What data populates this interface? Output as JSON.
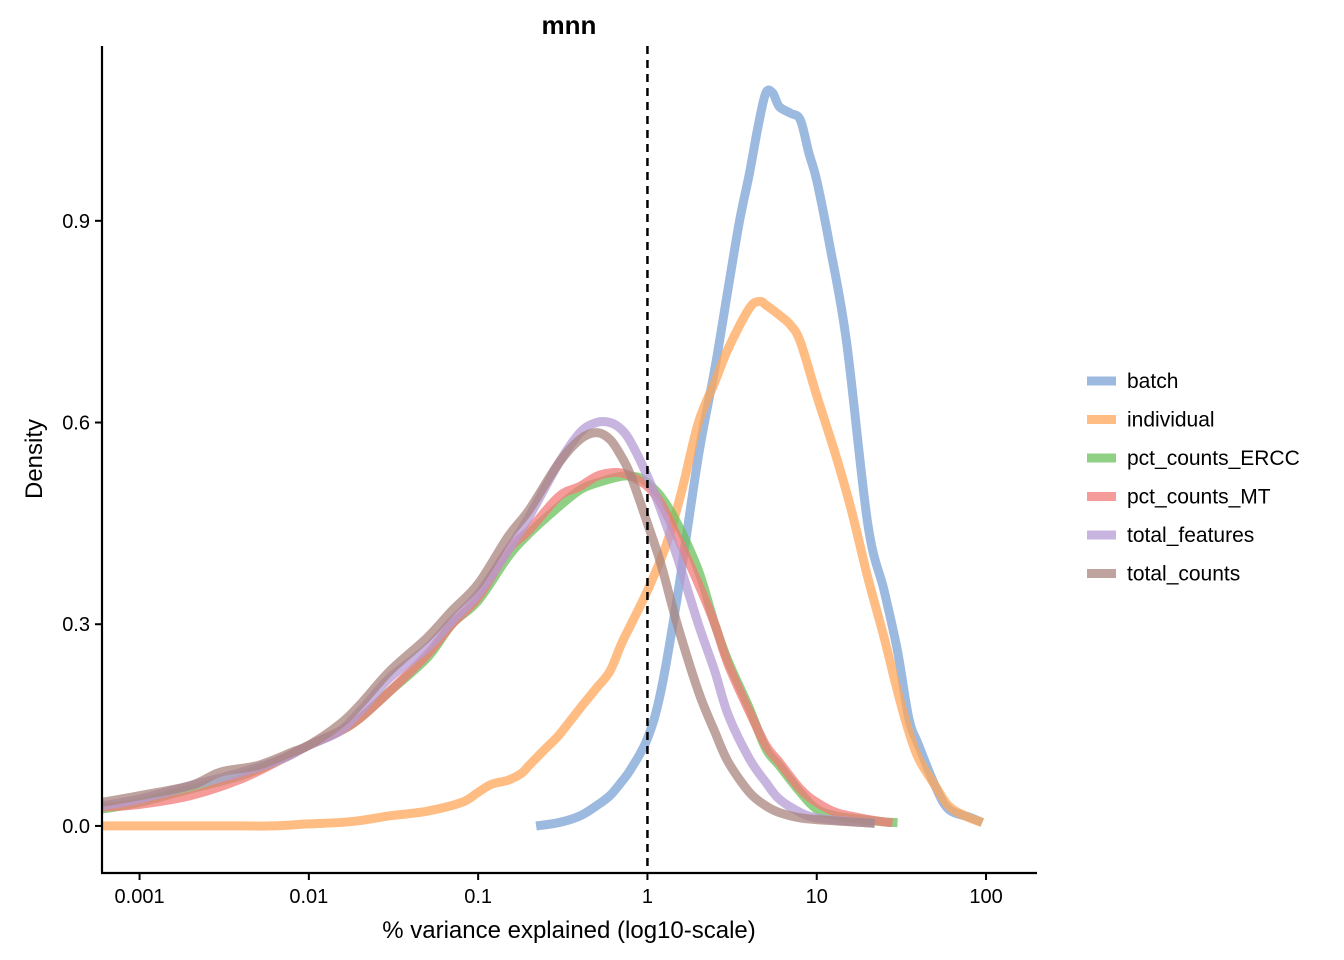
{
  "chart_data": {
    "type": "line",
    "title": "mnn",
    "xlabel": "% variance explained (log10-scale)",
    "ylabel": "Density",
    "x_scale": "log10",
    "xlim": [
      0.0006,
      200
    ],
    "ylim": [
      -0.07,
      1.16
    ],
    "x_ticks": [
      {
        "value": 0.001,
        "label": "0.001"
      },
      {
        "value": 0.01,
        "label": "0.01"
      },
      {
        "value": 0.1,
        "label": "0.1"
      },
      {
        "value": 1,
        "label": "1"
      },
      {
        "value": 10,
        "label": "10"
      },
      {
        "value": 100,
        "label": "100"
      }
    ],
    "y_ticks": [
      {
        "value": 0.0,
        "label": "0.0"
      },
      {
        "value": 0.3,
        "label": "0.3"
      },
      {
        "value": 0.6,
        "label": "0.6"
      },
      {
        "value": 0.9,
        "label": "0.9"
      }
    ],
    "vline": {
      "x": 1,
      "style": "dashed"
    },
    "grid": false,
    "legend_position": "right",
    "series": [
      {
        "name": "batch",
        "color": "#7ba3d4",
        "points": [
          [
            0.22,
            0.0
          ],
          [
            0.3,
            0.005
          ],
          [
            0.4,
            0.015
          ],
          [
            0.5,
            0.03
          ],
          [
            0.6,
            0.045
          ],
          [
            0.7,
            0.065
          ],
          [
            0.8,
            0.085
          ],
          [
            1.0,
            0.13
          ],
          [
            1.2,
            0.2
          ],
          [
            1.5,
            0.34
          ],
          [
            2.0,
            0.55
          ],
          [
            2.5,
            0.68
          ],
          [
            3.0,
            0.8
          ],
          [
            3.5,
            0.9
          ],
          [
            4.0,
            0.97
          ],
          [
            4.5,
            1.04
          ],
          [
            5.0,
            1.09
          ],
          [
            5.5,
            1.09
          ],
          [
            6.0,
            1.07
          ],
          [
            7.0,
            1.06
          ],
          [
            8.0,
            1.05
          ],
          [
            9.0,
            1.0
          ],
          [
            10.0,
            0.96
          ],
          [
            12.0,
            0.86
          ],
          [
            15.0,
            0.72
          ],
          [
            20.0,
            0.45
          ],
          [
            25.0,
            0.35
          ],
          [
            30.0,
            0.26
          ],
          [
            35.0,
            0.16
          ],
          [
            40.0,
            0.12
          ],
          [
            50.0,
            0.06
          ],
          [
            60.0,
            0.025
          ],
          [
            80.0,
            0.013
          ],
          [
            95.0,
            0.005
          ]
        ]
      },
      {
        "name": "individual",
        "color": "#ffa65a",
        "points": [
          [
            0.0006,
            0.0
          ],
          [
            0.001,
            0.0
          ],
          [
            0.002,
            0.0
          ],
          [
            0.004,
            0.0
          ],
          [
            0.006,
            0.0
          ],
          [
            0.01,
            0.003
          ],
          [
            0.015,
            0.005
          ],
          [
            0.02,
            0.008
          ],
          [
            0.03,
            0.015
          ],
          [
            0.05,
            0.022
          ],
          [
            0.08,
            0.035
          ],
          [
            0.1,
            0.05
          ],
          [
            0.12,
            0.062
          ],
          [
            0.15,
            0.068
          ],
          [
            0.18,
            0.078
          ],
          [
            0.2,
            0.09
          ],
          [
            0.25,
            0.115
          ],
          [
            0.3,
            0.135
          ],
          [
            0.4,
            0.175
          ],
          [
            0.5,
            0.205
          ],
          [
            0.6,
            0.23
          ],
          [
            0.7,
            0.27
          ],
          [
            0.8,
            0.3
          ],
          [
            1.0,
            0.35
          ],
          [
            1.3,
            0.42
          ],
          [
            1.6,
            0.5
          ],
          [
            2.0,
            0.6
          ],
          [
            2.5,
            0.66
          ],
          [
            3.0,
            0.71
          ],
          [
            4.0,
            0.77
          ],
          [
            4.6,
            0.78
          ],
          [
            5.0,
            0.775
          ],
          [
            6.0,
            0.76
          ],
          [
            7.0,
            0.745
          ],
          [
            8.0,
            0.72
          ],
          [
            10.0,
            0.64
          ],
          [
            13.0,
            0.55
          ],
          [
            16.0,
            0.47
          ],
          [
            20.0,
            0.37
          ],
          [
            25.0,
            0.28
          ],
          [
            30.0,
            0.2
          ],
          [
            35.0,
            0.14
          ],
          [
            40.0,
            0.1
          ],
          [
            50.0,
            0.06
          ],
          [
            60.0,
            0.03
          ],
          [
            75.0,
            0.015
          ],
          [
            95.0,
            0.005
          ]
        ]
      },
      {
        "name": "pct_counts_ERCC",
        "color": "#6bc05c",
        "points": [
          [
            0.0006,
            0.025
          ],
          [
            0.001,
            0.035
          ],
          [
            0.002,
            0.055
          ],
          [
            0.004,
            0.075
          ],
          [
            0.007,
            0.1
          ],
          [
            0.01,
            0.12
          ],
          [
            0.015,
            0.14
          ],
          [
            0.02,
            0.16
          ],
          [
            0.03,
            0.2
          ],
          [
            0.05,
            0.25
          ],
          [
            0.07,
            0.3
          ],
          [
            0.1,
            0.335
          ],
          [
            0.15,
            0.4
          ],
          [
            0.2,
            0.435
          ],
          [
            0.3,
            0.475
          ],
          [
            0.4,
            0.5
          ],
          [
            0.5,
            0.51
          ],
          [
            0.7,
            0.52
          ],
          [
            0.8,
            0.52
          ],
          [
            0.9,
            0.518
          ],
          [
            1.0,
            0.51
          ],
          [
            1.2,
            0.49
          ],
          [
            1.5,
            0.45
          ],
          [
            2.0,
            0.38
          ],
          [
            2.5,
            0.3
          ],
          [
            3.0,
            0.245
          ],
          [
            4.0,
            0.175
          ],
          [
            5.0,
            0.115
          ],
          [
            6.0,
            0.09
          ],
          [
            8.0,
            0.05
          ],
          [
            10.0,
            0.025
          ],
          [
            13.0,
            0.015
          ],
          [
            18.0,
            0.01
          ],
          [
            25.0,
            0.006
          ],
          [
            30.0,
            0.005
          ]
        ]
      },
      {
        "name": "pct_counts_MT",
        "color": "#f27a77",
        "points": [
          [
            0.0006,
            0.028
          ],
          [
            0.001,
            0.032
          ],
          [
            0.002,
            0.045
          ],
          [
            0.004,
            0.07
          ],
          [
            0.007,
            0.1
          ],
          [
            0.01,
            0.12
          ],
          [
            0.015,
            0.14
          ],
          [
            0.02,
            0.16
          ],
          [
            0.03,
            0.2
          ],
          [
            0.05,
            0.255
          ],
          [
            0.07,
            0.3
          ],
          [
            0.1,
            0.34
          ],
          [
            0.15,
            0.41
          ],
          [
            0.2,
            0.44
          ],
          [
            0.3,
            0.49
          ],
          [
            0.4,
            0.505
          ],
          [
            0.5,
            0.52
          ],
          [
            0.6,
            0.525
          ],
          [
            0.7,
            0.525
          ],
          [
            0.8,
            0.52
          ],
          [
            1.0,
            0.505
          ],
          [
            1.2,
            0.48
          ],
          [
            1.5,
            0.43
          ],
          [
            2.0,
            0.36
          ],
          [
            2.5,
            0.3
          ],
          [
            3.0,
            0.24
          ],
          [
            4.0,
            0.17
          ],
          [
            5.0,
            0.12
          ],
          [
            6.0,
            0.095
          ],
          [
            8.0,
            0.055
          ],
          [
            10.0,
            0.035
          ],
          [
            13.0,
            0.02
          ],
          [
            18.0,
            0.012
          ],
          [
            25.0,
            0.006
          ],
          [
            28.0,
            0.005
          ]
        ]
      },
      {
        "name": "total_features",
        "color": "#b49bd4",
        "points": [
          [
            0.0006,
            0.03
          ],
          [
            0.001,
            0.04
          ],
          [
            0.002,
            0.06
          ],
          [
            0.004,
            0.08
          ],
          [
            0.007,
            0.1
          ],
          [
            0.01,
            0.12
          ],
          [
            0.015,
            0.14
          ],
          [
            0.02,
            0.17
          ],
          [
            0.03,
            0.22
          ],
          [
            0.05,
            0.265
          ],
          [
            0.07,
            0.305
          ],
          [
            0.1,
            0.345
          ],
          [
            0.15,
            0.41
          ],
          [
            0.2,
            0.46
          ],
          [
            0.3,
            0.54
          ],
          [
            0.4,
            0.585
          ],
          [
            0.5,
            0.6
          ],
          [
            0.6,
            0.6
          ],
          [
            0.7,
            0.59
          ],
          [
            0.8,
            0.57
          ],
          [
            1.0,
            0.52
          ],
          [
            1.2,
            0.47
          ],
          [
            1.5,
            0.4
          ],
          [
            2.0,
            0.3
          ],
          [
            2.5,
            0.23
          ],
          [
            3.0,
            0.165
          ],
          [
            4.0,
            0.1
          ],
          [
            5.0,
            0.065
          ],
          [
            6.0,
            0.04
          ],
          [
            8.0,
            0.02
          ],
          [
            10.0,
            0.012
          ],
          [
            15.0,
            0.007
          ],
          [
            22.0,
            0.004
          ]
        ]
      },
      {
        "name": "total_counts",
        "color": "#a8847d",
        "points": [
          [
            0.0006,
            0.035
          ],
          [
            0.001,
            0.045
          ],
          [
            0.002,
            0.06
          ],
          [
            0.003,
            0.08
          ],
          [
            0.005,
            0.09
          ],
          [
            0.008,
            0.11
          ],
          [
            0.01,
            0.12
          ],
          [
            0.015,
            0.15
          ],
          [
            0.02,
            0.18
          ],
          [
            0.03,
            0.23
          ],
          [
            0.05,
            0.28
          ],
          [
            0.07,
            0.32
          ],
          [
            0.1,
            0.36
          ],
          [
            0.15,
            0.43
          ],
          [
            0.2,
            0.47
          ],
          [
            0.3,
            0.54
          ],
          [
            0.4,
            0.575
          ],
          [
            0.5,
            0.585
          ],
          [
            0.6,
            0.575
          ],
          [
            0.7,
            0.55
          ],
          [
            0.8,
            0.52
          ],
          [
            1.0,
            0.45
          ],
          [
            1.2,
            0.39
          ],
          [
            1.5,
            0.3
          ],
          [
            2.0,
            0.2
          ],
          [
            2.5,
            0.14
          ],
          [
            3.0,
            0.095
          ],
          [
            4.0,
            0.05
          ],
          [
            5.0,
            0.03
          ],
          [
            6.0,
            0.02
          ],
          [
            8.0,
            0.012
          ],
          [
            12.0,
            0.008
          ],
          [
            22.0,
            0.004
          ]
        ]
      }
    ]
  }
}
